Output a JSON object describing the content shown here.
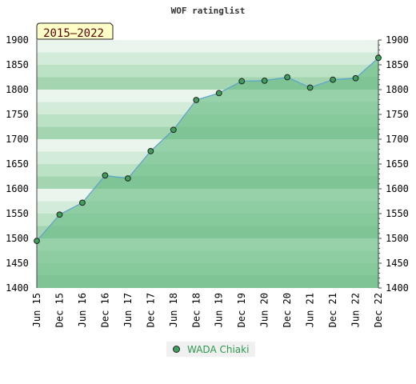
{
  "chart_data": {
    "type": "area",
    "title": "WOF ratinglist",
    "period_badge": "2015–2022",
    "x": [
      "Jun 15",
      "Dec 15",
      "Jun 16",
      "Dec 16",
      "Jun 17",
      "Dec 17",
      "Jun 18",
      "Dec 18",
      "Jun 19",
      "Dec 19",
      "Jun 20",
      "Dec 20",
      "Jun 21",
      "Dec 21",
      "Jun 22",
      "Dec 22"
    ],
    "series": [
      {
        "name": "WADA Chiaki",
        "values": [
          1495,
          1548,
          1572,
          1627,
          1621,
          1676,
          1719,
          1779,
          1793,
          1817,
          1818,
          1825,
          1804,
          1820,
          1823,
          1864
        ]
      }
    ],
    "ylim": [
      1400,
      1900
    ],
    "yticks": [
      1400,
      1450,
      1500,
      1550,
      1600,
      1650,
      1700,
      1750,
      1800,
      1850,
      1900
    ],
    "grid": true,
    "legend_position": "bottom",
    "colors": {
      "line": "#5ba3d0",
      "marker": "#3f9f5b",
      "legend_text": "#2e9a4d"
    }
  }
}
